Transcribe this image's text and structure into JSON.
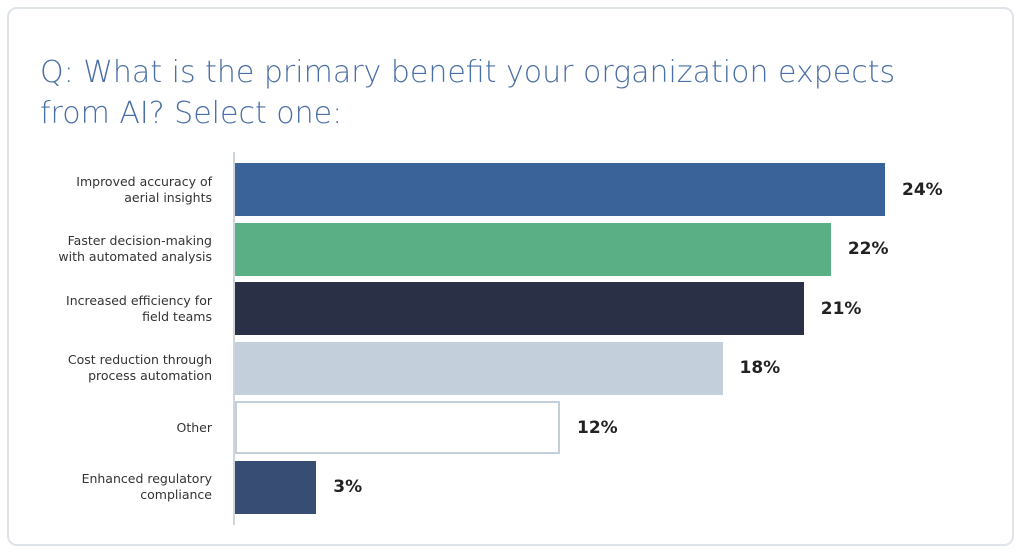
{
  "chart_data": {
    "type": "bar",
    "orientation": "horizontal",
    "title": "Q: What is the primary benefit your organization expects from AI? Select one:",
    "categories": [
      "Improved accuracy of aerial insights",
      "Faster decision-making with automated analysis",
      "Increased efficiency for field teams",
      "Cost reduction through process automation",
      "Other",
      "Enhanced regulatory compliance"
    ],
    "values": [
      24,
      22,
      21,
      18,
      12,
      3
    ],
    "value_labels": [
      "24%",
      "22%",
      "21%",
      "18%",
      "12%",
      "3%"
    ],
    "colors": [
      "#3a6399",
      "#5aaf84",
      "#2a3045",
      "#c4cfdc",
      "#ffffff",
      "#374d73"
    ]
  }
}
